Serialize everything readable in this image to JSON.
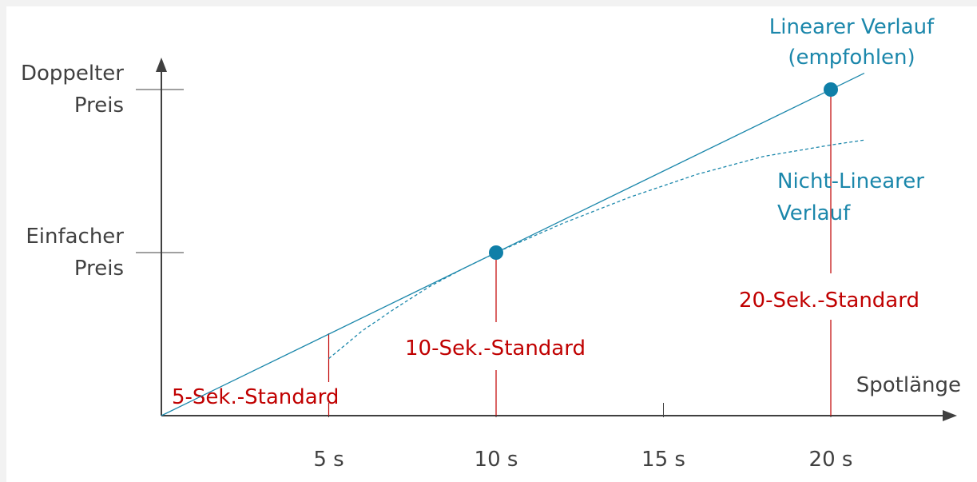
{
  "colors": {
    "axis": "#404040",
    "tick": "#404040",
    "linear": "#1b87ab",
    "point": "#0f7fa8",
    "nonlinear": "#1b87ab",
    "standard": "#c00000",
    "label_blue": "#1b87ab",
    "label_dark": "#404040"
  },
  "chart_data": {
    "type": "line",
    "xlabel": "Spotlänge",
    "xlim": [
      0,
      23
    ],
    "ylim": [
      0,
      2.1
    ],
    "x_ticks": [
      {
        "value": 5,
        "label": "5 s"
      },
      {
        "value": 10,
        "label": "10 s"
      },
      {
        "value": 15,
        "label": "15 s"
      },
      {
        "value": 20,
        "label": "20 s"
      }
    ],
    "y_ticks": [
      {
        "value": 1,
        "lines": [
          "Einfacher",
          "Preis"
        ]
      },
      {
        "value": 2,
        "lines": [
          "Doppelter",
          "Preis"
        ]
      }
    ],
    "series": [
      {
        "name": "Linearer Verlauf (empfohlen)",
        "label_lines": [
          "Linearer Verlauf",
          "(empfohlen)"
        ],
        "style": "solid",
        "x": [
          0,
          21
        ],
        "y": [
          0,
          2.1
        ]
      },
      {
        "name": "Nicht-Linearer Verlauf",
        "label_lines": [
          "Nicht-Linearer",
          "Verlauf"
        ],
        "style": "dashed",
        "x": [
          5,
          6,
          7,
          8,
          9,
          10,
          12,
          14,
          16,
          18,
          20,
          21
        ],
        "y": [
          0.35,
          0.52,
          0.66,
          0.79,
          0.9,
          1.0,
          1.18,
          1.34,
          1.48,
          1.59,
          1.66,
          1.69
        ]
      }
    ],
    "points": [
      {
        "x": 10,
        "y": 1.0
      },
      {
        "x": 20,
        "y": 2.0
      }
    ],
    "standards": [
      {
        "x": 5,
        "label": "5-Sek.-Standard"
      },
      {
        "x": 10,
        "label": "10-Sek.-Standard"
      },
      {
        "x": 20,
        "label": "20-Sek.-Standard"
      }
    ]
  }
}
